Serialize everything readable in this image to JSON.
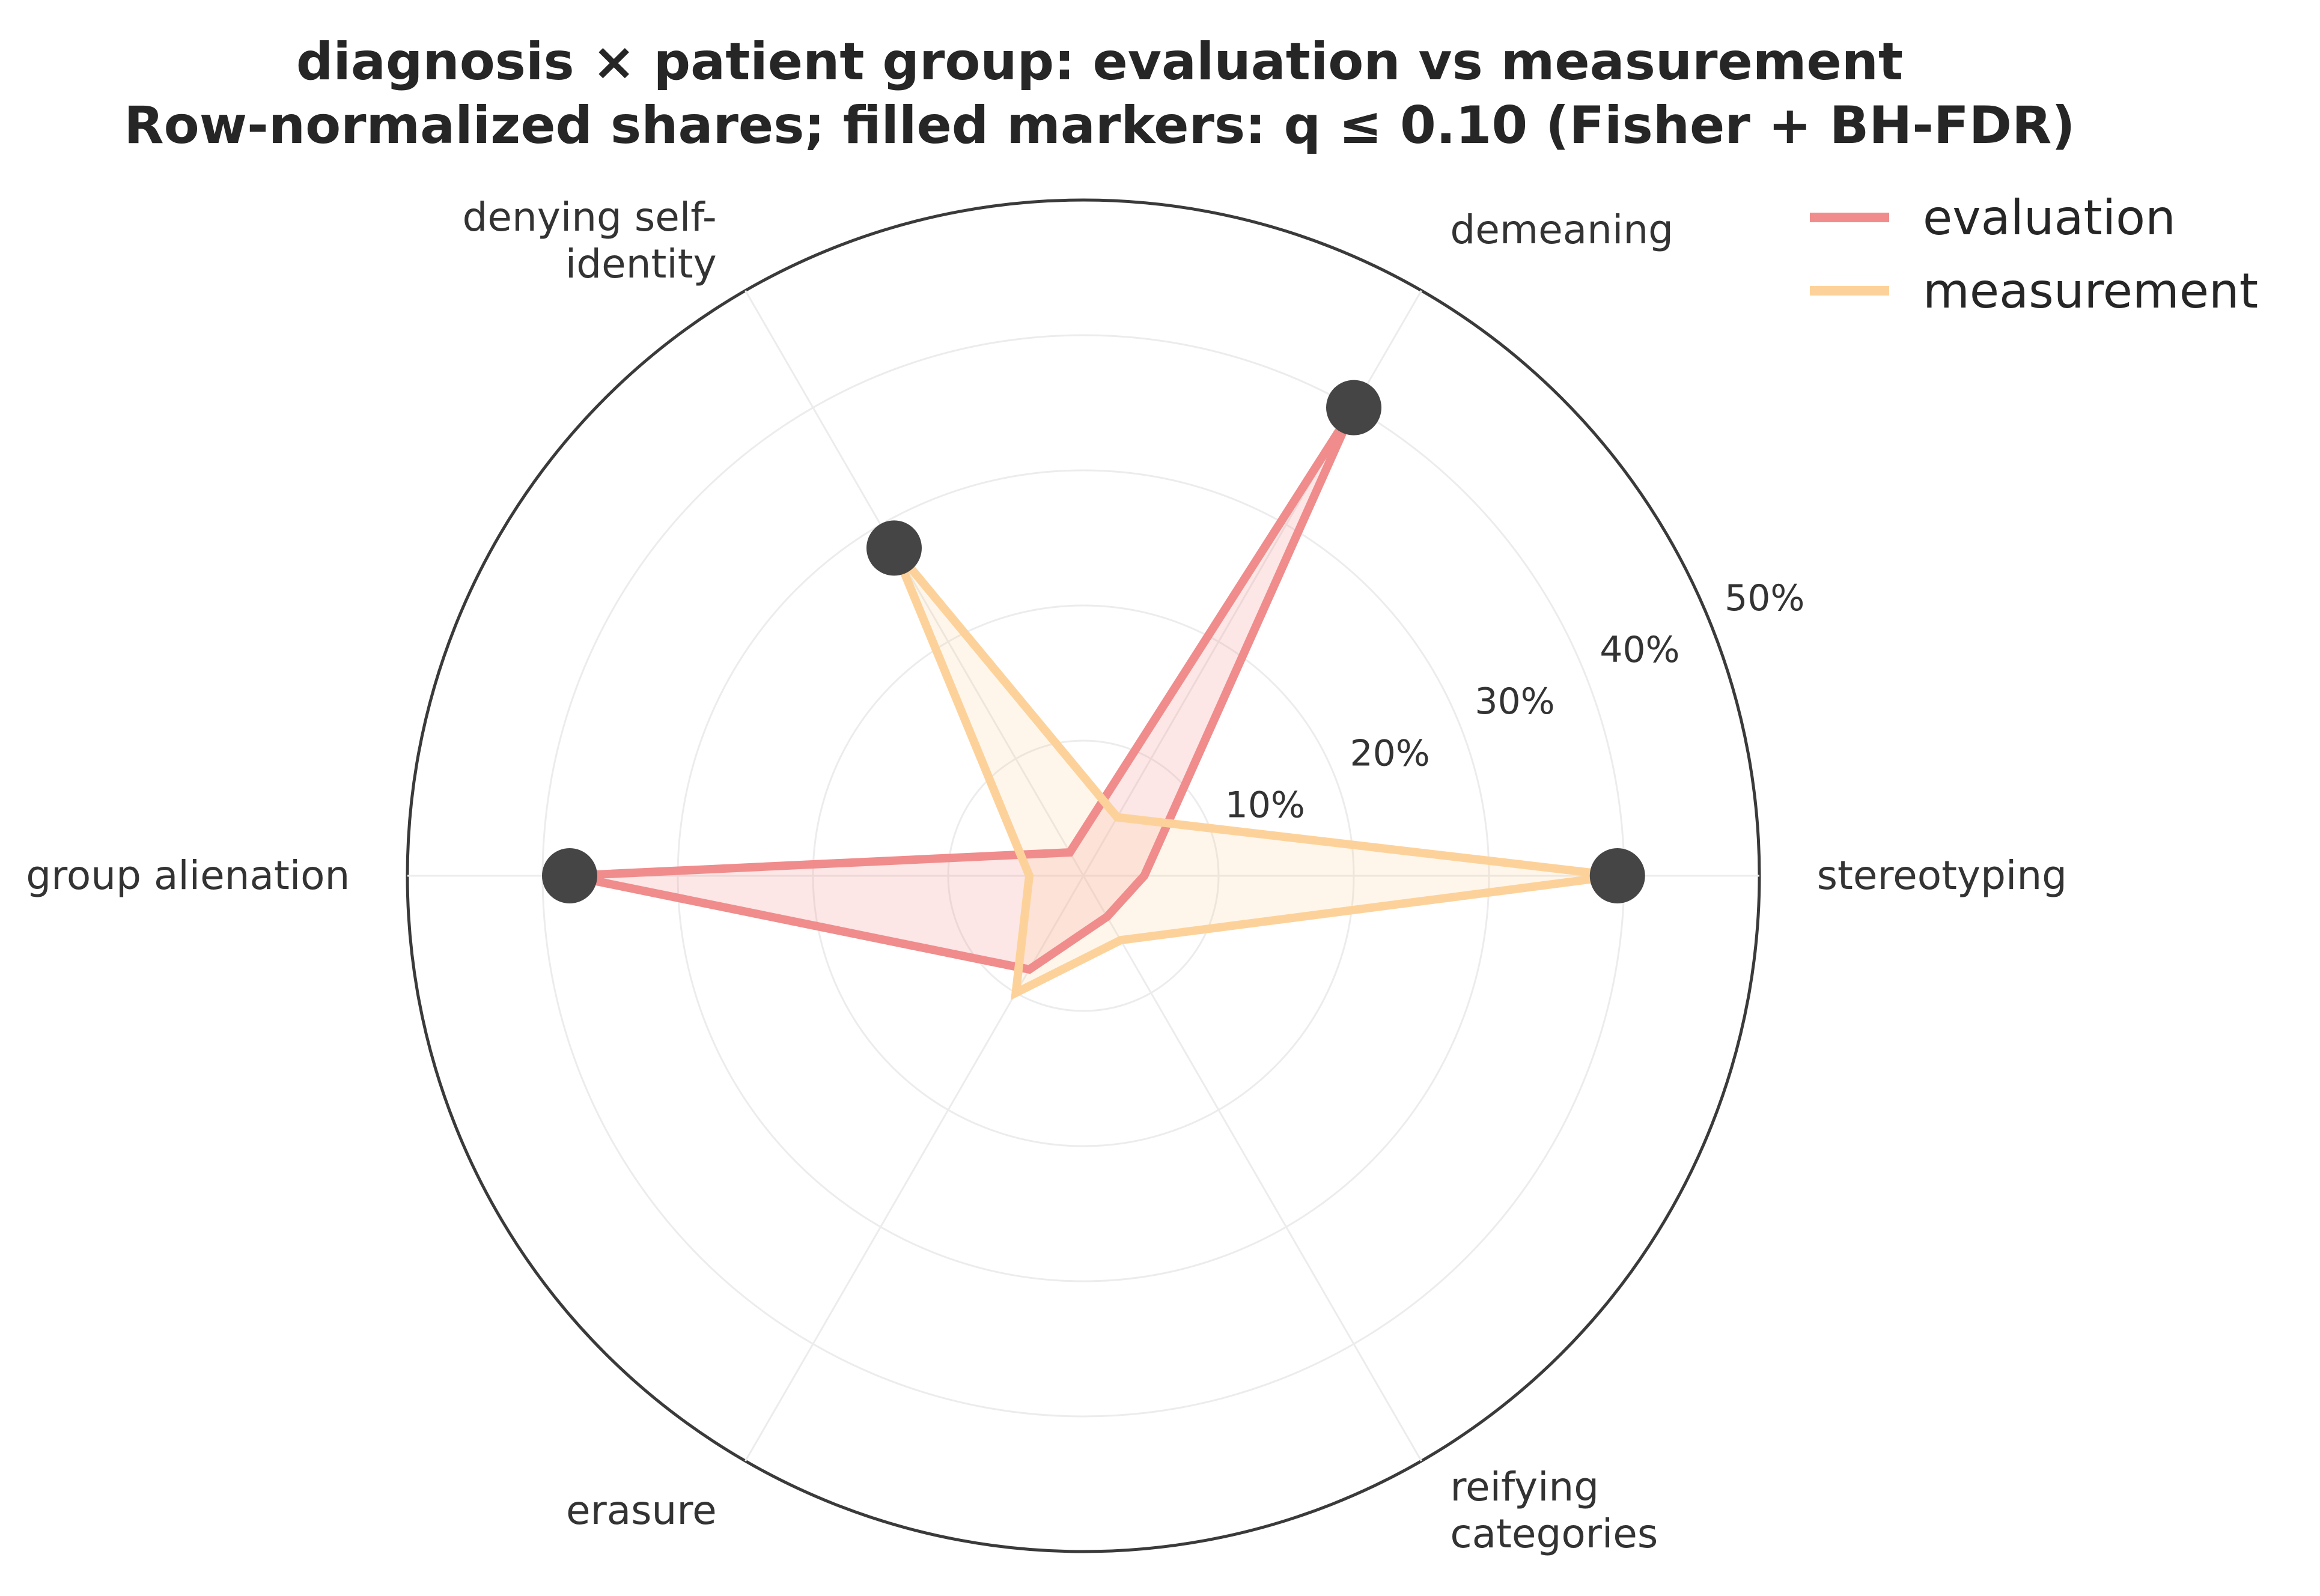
{
  "title": {
    "line1": "diagnosis × patient group: evaluation vs measurement",
    "line2": "Row-normalized shares; filled markers: q ≤ 0.10 (Fisher + BH-FDR)"
  },
  "legend": {
    "placement": "top-right",
    "items": [
      {
        "label": "evaluation",
        "color": "#f08c8c"
      },
      {
        "label": "measurement",
        "color": "#fdd29a"
      }
    ]
  },
  "chart_data": {
    "type": "radar",
    "title": "diagnosis × patient group: evaluation vs measurement",
    "subtitle": "Row-normalized shares; filled markers: q ≤ 0.10 (Fisher + BH-FDR)",
    "categories": [
      "stereotyping",
      "demeaning",
      "denying self-\nidentity",
      "group alienation",
      "erasure",
      "reifying\ncategories"
    ],
    "rlim": [
      0,
      50
    ],
    "rticks": [
      10,
      20,
      30,
      40,
      50
    ],
    "rtick_labels": [
      "10%",
      "20%",
      "30%",
      "40%",
      "50%"
    ],
    "grid": true,
    "series": [
      {
        "name": "evaluation",
        "color": "#f08c8c",
        "values": [
          4.5,
          40.0,
          2.0,
          38.0,
          8.0,
          3.5
        ]
      },
      {
        "name": "measurement",
        "color": "#fdd29a",
        "values": [
          39.5,
          5.0,
          28.0,
          4.0,
          10.0,
          5.5
        ]
      }
    ],
    "significant_markers": [
      {
        "category": "stereotyping",
        "series": "measurement",
        "value": 39.5
      },
      {
        "category": "demeaning",
        "series": "evaluation",
        "value": 40.0
      },
      {
        "category": "denying self-\nidentity",
        "series": "measurement",
        "value": 28.0
      },
      {
        "category": "group alienation",
        "series": "evaluation",
        "value": 38.0
      }
    ],
    "marker_color": "#454545"
  }
}
